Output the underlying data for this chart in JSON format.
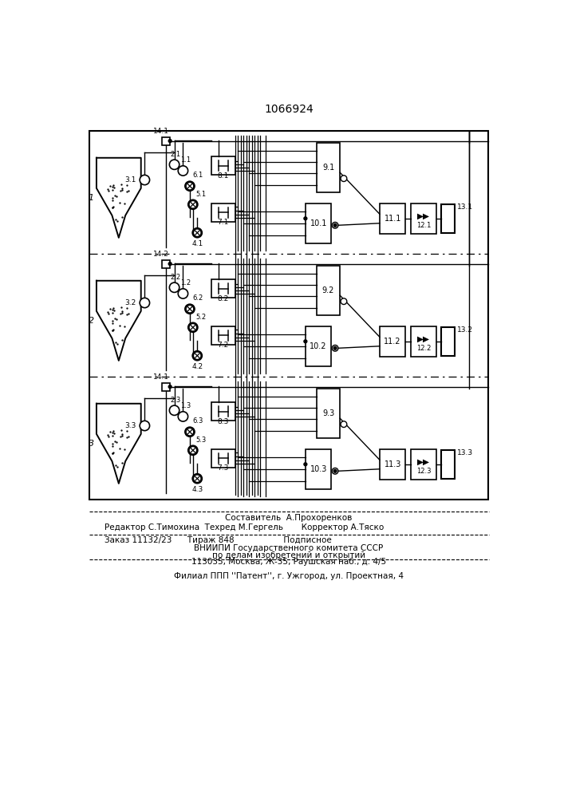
{
  "title": "1066924",
  "bg_color": "#ffffff",
  "row_labels": [
    "14.1",
    "14.2",
    "14.1"
  ],
  "channel_labels": [
    "1",
    "2",
    "3"
  ],
  "sensor_labels_2": [
    "2.1",
    "2.2",
    "2.3"
  ],
  "sensor_labels_1": [
    "1.1",
    "1.2",
    "1.3"
  ],
  "sensor_labels_3": [
    "3.1",
    "3.2",
    "3.3"
  ],
  "sensor_labels_6": [
    "6.1",
    "6.2",
    "6.3"
  ],
  "sensor_labels_5": [
    "5.1",
    "5.2",
    "5.3"
  ],
  "sensor_labels_4": [
    "4.1",
    "4.2",
    "4.3"
  ],
  "box8_labels": [
    "8.1",
    "8.2",
    "8.3"
  ],
  "box7_labels": [
    "7.1",
    "7.2",
    "7.3"
  ],
  "box9_labels": [
    "9.1",
    "9.2",
    "9.3"
  ],
  "box10_labels": [
    "10.1",
    "10.2",
    "10.3"
  ],
  "box11_labels": [
    "11.1",
    "11.2",
    "11.3"
  ],
  "box12_labels": [
    "12.1",
    "12.2",
    "12.3"
  ],
  "box13_labels": [
    "13.1",
    "13.2",
    "13.3"
  ],
  "footer": [
    [
      "center",
      353,
      730,
      "Составитель  А.Прохоренков"
    ],
    [
      "left",
      55,
      745,
      "Редактор С.Тимохина  Техред М.Гергель       Корректор А.Тяско"
    ],
    [
      "left",
      55,
      763,
      "Заказ 11132/23      Тираж 848                   Подписное"
    ],
    [
      "center",
      353,
      774,
      "ВНИИПИ Государственного комитета СССР"
    ],
    [
      "center",
      353,
      784,
      "по делам изобретений и открытий"
    ],
    [
      "center",
      353,
      794,
      "113035, Москва, Ж-35, Раушская наб., д. 4/5"
    ],
    [
      "center",
      353,
      818,
      "Филиал ППП ''Патент'', г. Ужгород, ул. Проектная, 4"
    ]
  ]
}
